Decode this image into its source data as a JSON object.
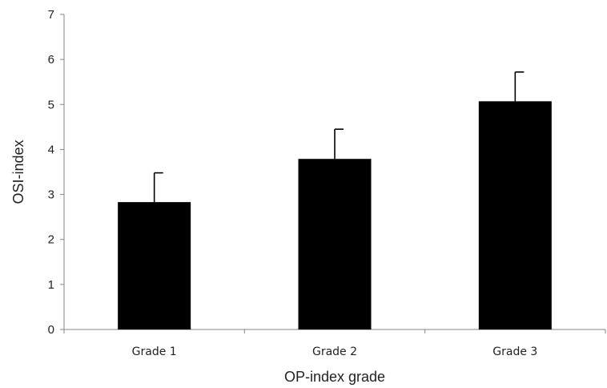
{
  "chart_data": {
    "type": "bar",
    "categories": [
      "Grade 1",
      "Grade 2",
      "Grade 3"
    ],
    "values": [
      2.83,
      3.79,
      5.07
    ],
    "error_upper": [
      0.65,
      0.66,
      0.65
    ],
    "xlabel": "OP-index grade",
    "ylabel": "OSI-index",
    "ylim": [
      0,
      7
    ],
    "yticks": [
      0,
      1,
      2,
      3,
      4,
      5,
      6,
      7
    ],
    "grid": false,
    "legend": "none",
    "bar_color": "#000000"
  }
}
